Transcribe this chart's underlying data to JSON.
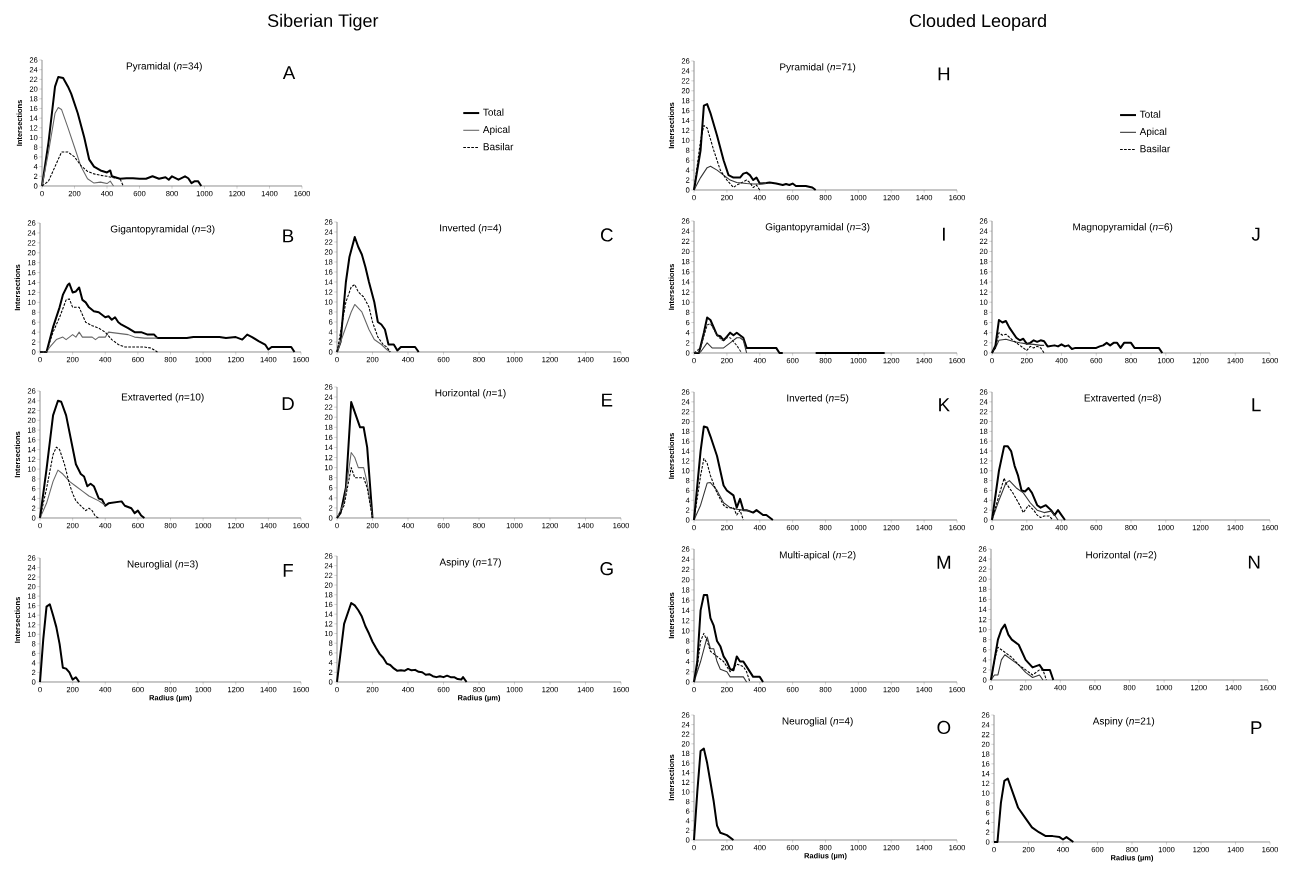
{
  "chart_data": [
    {
      "type": "line",
      "title": "Pyramidal (*n*=34)",
      "ylabel": "Intersections",
      "annotations": [
        "A",
        "Siberian Tiger"
      ],
      "legend": "right",
      "xlim": [
        0,
        1600
      ],
      "ylim": [
        0,
        26
      ],
      "xticks": [
        0,
        200,
        400,
        600,
        800,
        1000,
        1200,
        1400,
        1600
      ],
      "yticks": [
        0,
        2,
        4,
        6,
        8,
        10,
        12,
        14,
        16,
        18,
        20,
        22,
        24,
        26
      ],
      "series": [
        {
          "name": "Total",
          "color": "#000000",
          "x": [
            0,
            40,
            80,
            100,
            130,
            160,
            180,
            220,
            260,
            290,
            320,
            360,
            400,
            420,
            430,
            460,
            480,
            520,
            560,
            600,
            640,
            680,
            720,
            760,
            780,
            800,
            840,
            880,
            900,
            920,
            940,
            960,
            980
          ],
          "values": [
            0,
            9,
            20.5,
            22.5,
            22.3,
            20.5,
            19,
            15,
            10,
            5.5,
            4,
            3.2,
            2.8,
            3.2,
            2,
            1.7,
            1.5,
            1.6,
            1.6,
            1.5,
            1.5,
            2,
            1.5,
            1.8,
            1.3,
            2,
            1.3,
            2,
            1.6,
            0.6,
            1,
            1,
            0
          ]
        },
        {
          "name": "Apical",
          "color": "#666666",
          "x": [
            0,
            40,
            80,
            100,
            120,
            160,
            200,
            240,
            280,
            320,
            360,
            400,
            420,
            440
          ],
          "values": [
            0,
            7,
            15,
            16.2,
            15.8,
            12,
            8,
            4,
            1.5,
            0.6,
            0.8,
            0.5,
            1,
            0
          ]
        },
        {
          "name": "Basilar",
          "color": "#000000",
          "line_style": "dashed",
          "x": [
            0,
            40,
            80,
            120,
            160,
            200,
            240,
            280,
            320,
            360,
            400,
            440,
            480,
            500
          ],
          "values": [
            0,
            1,
            4,
            7,
            7,
            6,
            4.2,
            3,
            2.5,
            2.2,
            2,
            1.7,
            1.5,
            0
          ]
        }
      ]
    },
    {
      "type": "line",
      "title": "Gigantopyramidal (*n*=3)",
      "ylabel": "Intersections",
      "annotations": [
        "B"
      ],
      "xlim": [
        0,
        1600
      ],
      "ylim": [
        0,
        26
      ],
      "xticks": [
        0,
        200,
        400,
        600,
        800,
        1000,
        1200,
        1400,
        1600
      ],
      "yticks": [
        0,
        2,
        4,
        6,
        8,
        10,
        12,
        14,
        16,
        18,
        20,
        22,
        24,
        26
      ],
      "series": [
        {
          "color": "#000000",
          "x": [
            0,
            40,
            60,
            80,
            100,
            120,
            140,
            170,
            180,
            200,
            220,
            240,
            260,
            280,
            300,
            330,
            360,
            380,
            400,
            420,
            440,
            460,
            480,
            500,
            540,
            580,
            620,
            660,
            700,
            720,
            900,
            940,
            1100,
            1140,
            1200,
            1240,
            1270,
            1300,
            1340,
            1380,
            1400,
            1420,
            1540,
            1560
          ],
          "values": [
            0,
            0,
            2.5,
            5,
            7,
            9,
            11.5,
            13.5,
            13.8,
            12,
            12.2,
            13,
            10.5,
            10,
            9,
            8.2,
            8,
            7.5,
            7,
            7.2,
            6.5,
            7,
            6,
            5.5,
            4.8,
            4,
            4,
            3.5,
            3.5,
            2.8,
            2.8,
            3,
            3,
            2.8,
            3,
            2.5,
            3.5,
            3,
            2.2,
            1.5,
            0.5,
            1,
            1,
            0
          ]
        },
        {
          "color": "#666666",
          "x": [
            0,
            40,
            60,
            100,
            140,
            160,
            200,
            220,
            240,
            260,
            320,
            340,
            360,
            400,
            420,
            540,
            580,
            640,
            720
          ],
          "values": [
            0,
            0,
            1,
            2.5,
            3,
            2.5,
            3.5,
            3,
            4,
            3,
            3,
            2.5,
            3,
            3,
            4,
            3.5,
            3,
            2.8,
            2.8
          ]
        },
        {
          "color": "#000000",
          "line_style": "dashed",
          "x": [
            0,
            40,
            80,
            120,
            160,
            180,
            200,
            240,
            260,
            280,
            320,
            360,
            400,
            440,
            480,
            520,
            640,
            680,
            720
          ],
          "values": [
            0,
            0,
            4,
            7,
            10.5,
            10.7,
            9,
            9,
            7.5,
            6,
            5.3,
            4.8,
            4,
            2.5,
            1.5,
            1,
            1,
            0.8,
            0
          ]
        }
      ]
    },
    {
      "type": "line",
      "title": "Inverted (*n*=4)",
      "annotations": [
        "C"
      ],
      "xlim": [
        0,
        1600
      ],
      "ylim": [
        0,
        26
      ],
      "xticks": [
        0,
        200,
        400,
        600,
        800,
        1000,
        1200,
        1400,
        1600
      ],
      "yticks": [
        0,
        2,
        4,
        6,
        8,
        10,
        12,
        14,
        16,
        18,
        20,
        22,
        24,
        26
      ],
      "series": [
        {
          "color": "#000000",
          "x": [
            0,
            20,
            50,
            70,
            100,
            120,
            140,
            160,
            180,
            210,
            230,
            250,
            270,
            290,
            320,
            340,
            360,
            440,
            460
          ],
          "values": [
            0,
            2,
            14,
            19,
            23,
            21,
            19.5,
            17,
            14,
            10,
            6,
            5.5,
            4.5,
            1.5,
            1.5,
            0.3,
            1,
            1,
            0
          ]
        },
        {
          "color": "#666666",
          "x": [
            0,
            40,
            80,
            100,
            140,
            180,
            210,
            250,
            280,
            300
          ],
          "values": [
            0,
            4,
            8,
            9.5,
            8,
            4.5,
            2.5,
            1.5,
            0.5,
            0
          ]
        },
        {
          "color": "#000000",
          "line_style": "dashed",
          "x": [
            0,
            50,
            80,
            100,
            120,
            150,
            180,
            200,
            230,
            260,
            280,
            300
          ],
          "values": [
            0,
            10,
            13,
            13.5,
            12,
            11,
            9,
            6,
            3,
            1.5,
            1,
            0
          ]
        }
      ]
    },
    {
      "type": "line",
      "title": "Extraverted (*n*=10)",
      "ylabel": "Intersections",
      "annotations": [
        "D"
      ],
      "xlim": [
        0,
        1600
      ],
      "ylim": [
        0,
        26
      ],
      "xticks": [
        0,
        200,
        400,
        600,
        800,
        1000,
        1200,
        1400,
        1600
      ],
      "yticks": [
        0,
        2,
        4,
        6,
        8,
        10,
        12,
        14,
        16,
        18,
        20,
        22,
        24,
        26
      ],
      "series": [
        {
          "color": "#000000",
          "x": [
            0,
            40,
            80,
            110,
            130,
            160,
            190,
            220,
            250,
            270,
            290,
            310,
            330,
            360,
            380,
            400,
            420,
            460,
            500,
            520,
            560,
            580,
            600,
            620,
            640
          ],
          "values": [
            0,
            10,
            21,
            24,
            23.8,
            21,
            16,
            11,
            9,
            8.5,
            6.5,
            7,
            6.5,
            4,
            3.8,
            2.5,
            3,
            3.2,
            3.4,
            2.5,
            2,
            1,
            1.5,
            0.5,
            0
          ]
        },
        {
          "color": "#666666",
          "x": [
            0,
            40,
            80,
            110,
            140,
            180,
            220,
            260,
            300,
            360,
            400
          ],
          "values": [
            0,
            3,
            7.5,
            9.8,
            9,
            7.5,
            6.5,
            5.5,
            4.5,
            3.5,
            2.6
          ]
        },
        {
          "color": "#000000",
          "line_style": "dashed",
          "x": [
            0,
            40,
            80,
            100,
            120,
            150,
            180,
            200,
            220,
            250,
            280,
            300,
            320,
            340,
            360
          ],
          "values": [
            0,
            6,
            13,
            14.5,
            14,
            11,
            7,
            5,
            3.5,
            2.5,
            1.5,
            2,
            1.5,
            0.3,
            0
          ]
        }
      ]
    },
    {
      "type": "line",
      "title": "Horizontal (*n*=1)",
      "annotations": [
        "E"
      ],
      "xlim": [
        0,
        1600
      ],
      "ylim": [
        0,
        26
      ],
      "xticks": [
        0,
        200,
        400,
        600,
        800,
        1000,
        1200,
        1400,
        1600
      ],
      "yticks": [
        0,
        2,
        4,
        6,
        8,
        10,
        12,
        14,
        16,
        18,
        20,
        22,
        24,
        26
      ],
      "series": [
        {
          "color": "#000000",
          "x": [
            0,
            20,
            50,
            80,
            100,
            130,
            150,
            170,
            200
          ],
          "values": [
            0,
            1,
            6,
            23,
            21,
            18,
            18,
            14,
            0
          ]
        },
        {
          "color": "#666666",
          "x": [
            0,
            40,
            80,
            100,
            120,
            150,
            170,
            200
          ],
          "values": [
            0,
            3,
            13,
            12,
            10,
            10,
            7,
            0
          ]
        },
        {
          "color": "#000000",
          "line_style": "dashed",
          "x": [
            0,
            40,
            80,
            100,
            150,
            170,
            200
          ],
          "values": [
            0,
            2.5,
            10,
            8,
            8,
            6,
            0
          ]
        }
      ]
    },
    {
      "type": "line",
      "title": "Neuroglial (*n*=3)",
      "xlabel": "Radius (µm)",
      "ylabel": "Intersections",
      "annotations": [
        "F"
      ],
      "xlim": [
        0,
        1600
      ],
      "ylim": [
        0,
        26
      ],
      "xticks": [
        0,
        200,
        400,
        600,
        800,
        1000,
        1200,
        1400,
        1600
      ],
      "yticks": [
        0,
        2,
        4,
        6,
        8,
        10,
        12,
        14,
        16,
        18,
        20,
        22,
        24,
        26
      ],
      "series": [
        {
          "color": "#000000",
          "x": [
            0,
            20,
            40,
            60,
            80,
            100,
            120,
            140,
            160,
            180,
            200,
            220,
            240
          ],
          "values": [
            0,
            9,
            15.8,
            16.3,
            14,
            11.5,
            8,
            3,
            2.8,
            2,
            0.5,
            1,
            0
          ]
        }
      ]
    },
    {
      "type": "line",
      "title": "Aspiny (*n*=17)",
      "xlabel": "Radius (µm)",
      "annotations": [
        "G"
      ],
      "xlim": [
        0,
        1600
      ],
      "ylim": [
        0,
        26
      ],
      "xticks": [
        0,
        200,
        400,
        600,
        800,
        1000,
        1200,
        1400,
        1600
      ],
      "yticks": [
        0,
        2,
        4,
        6,
        8,
        10,
        12,
        14,
        16,
        18,
        20,
        22,
        24,
        26
      ],
      "series": [
        {
          "color": "#000000",
          "x": [
            0,
            40,
            80,
            100,
            120,
            140,
            160,
            180,
            200,
            220,
            240,
            260,
            280,
            300,
            320,
            340,
            360,
            380,
            400,
            420,
            440,
            460,
            480,
            500,
            520,
            540,
            560,
            580,
            600,
            620,
            640,
            660,
            680,
            700,
            710,
            730
          ],
          "values": [
            0,
            12,
            16.3,
            15.8,
            14.8,
            13.5,
            11.5,
            10,
            8.3,
            7,
            5.8,
            5,
            3.8,
            3.5,
            2.8,
            2.3,
            2.4,
            2.3,
            2.7,
            2.4,
            2.5,
            2.1,
            2,
            1.5,
            1.6,
            1.2,
            1,
            1.2,
            1,
            1.3,
            1,
            1,
            0.6,
            0.5,
            1,
            0
          ]
        }
      ]
    },
    {
      "type": "line",
      "title": "Pyramidal (*n*=71)",
      "ylabel": "Intersections",
      "annotations": [
        "H",
        "Clouded Leopard"
      ],
      "legend": "right",
      "xlim": [
        0,
        1600
      ],
      "ylim": [
        0,
        26
      ],
      "xticks": [
        0,
        200,
        400,
        600,
        800,
        1000,
        1200,
        1400,
        1600
      ],
      "yticks": [
        0,
        2,
        4,
        6,
        8,
        10,
        12,
        14,
        16,
        18,
        20,
        22,
        24,
        26
      ],
      "series": [
        {
          "name": "Total",
          "color": "#000000",
          "x": [
            0,
            40,
            60,
            80,
            100,
            140,
            180,
            210,
            240,
            280,
            300,
            320,
            340,
            360,
            380,
            400,
            440,
            460,
            500,
            540,
            560,
            580,
            600,
            620,
            680,
            720,
            740
          ],
          "values": [
            0,
            8,
            17,
            17.3,
            15.5,
            11,
            6,
            3,
            2.5,
            2.5,
            3.3,
            3.5,
            3,
            2,
            2.5,
            1.3,
            1.4,
            1.5,
            1.3,
            1,
            1.2,
            1,
            1.3,
            0.8,
            0.8,
            0.5,
            0
          ]
        },
        {
          "name": "Apical",
          "color": "#333333",
          "x": [
            0,
            40,
            80,
            100,
            140,
            180,
            220,
            260,
            320,
            360,
            400,
            440
          ],
          "values": [
            0,
            2.5,
            4.5,
            4.8,
            4,
            3,
            2,
            1.5,
            1.3,
            1.2,
            1.2,
            1.3
          ]
        },
        {
          "name": "Basilar",
          "color": "#000000",
          "line_style": "dashed",
          "x": [
            0,
            40,
            60,
            80,
            120,
            160,
            200,
            240,
            260,
            280,
            320,
            340,
            360,
            380,
            400
          ],
          "values": [
            0,
            10,
            13,
            12.5,
            8,
            4,
            2,
            0.5,
            1,
            1.3,
            2,
            1.5,
            0.5,
            1,
            0
          ]
        }
      ]
    },
    {
      "type": "line",
      "title": "Gigantopyramidal (*n*=3)",
      "ylabel": "Intersections",
      "annotations": [
        "I"
      ],
      "xlim": [
        0,
        1600
      ],
      "ylim": [
        0,
        26
      ],
      "xticks": [
        0,
        200,
        400,
        600,
        800,
        1000,
        1200,
        1400,
        1600
      ],
      "yticks": [
        0,
        2,
        4,
        6,
        8,
        10,
        12,
        14,
        16,
        18,
        20,
        22,
        24,
        26
      ],
      "series": [
        {
          "color": "#000000",
          "x": [
            0,
            30,
            60,
            80,
            100,
            120,
            140,
            160,
            180,
            200,
            220,
            240,
            260,
            280,
            300,
            320,
            500,
            520,
            540,
            560,
            740,
            1160
          ],
          "values": [
            0,
            0,
            4,
            7,
            6.5,
            5,
            3.5,
            3.3,
            2.5,
            3.2,
            4,
            3.5,
            4,
            3.5,
            3,
            1,
            1,
            0,
            0,
            null,
            0,
            0
          ]
        },
        {
          "color": "#333333",
          "x": [
            0,
            40,
            80,
            110,
            180,
            220,
            260,
            280,
            300,
            320
          ],
          "values": [
            0,
            0.2,
            2,
            1,
            1,
            2,
            3,
            3,
            2.5,
            0
          ]
        },
        {
          "color": "#222222",
          "line_style": "dashed",
          "x": [
            0,
            40,
            80,
            100,
            140,
            170,
            200,
            220,
            260,
            290
          ],
          "values": [
            0,
            1,
            5.5,
            5.8,
            3.5,
            2.5,
            3,
            3,
            1.5,
            0
          ]
        }
      ]
    },
    {
      "type": "line",
      "title": "Magnopyramidal (*n*=6)",
      "annotations": [
        "J"
      ],
      "xlim": [
        0,
        1600
      ],
      "ylim": [
        0,
        26
      ],
      "xticks": [
        0,
        200,
        400,
        600,
        800,
        1000,
        1200,
        1400,
        1600
      ],
      "yticks": [
        0,
        2,
        4,
        6,
        8,
        10,
        12,
        14,
        16,
        18,
        20,
        22,
        24,
        26
      ],
      "series": [
        {
          "color": "#000000",
          "x": [
            0,
            20,
            40,
            60,
            80,
            100,
            120,
            140,
            160,
            180,
            200,
            220,
            240,
            260,
            280,
            300,
            320,
            360,
            380,
            400,
            420,
            440,
            460,
            480,
            600,
            620,
            640,
            660,
            680,
            700,
            720,
            740,
            760,
            800,
            820,
            960,
            980
          ],
          "values": [
            0,
            1.5,
            6.5,
            6,
            6.3,
            5,
            4,
            3,
            2.5,
            2.8,
            1.8,
            2,
            2.5,
            2.2,
            2.5,
            2.3,
            1.3,
            1.5,
            1.3,
            1.7,
            1.3,
            1.5,
            0.8,
            1,
            1,
            1.3,
            1.5,
            2,
            1.5,
            2,
            2,
            1,
            2,
            2,
            1,
            1,
            0
          ]
        },
        {
          "color": "#333333",
          "x": [
            0,
            20,
            40,
            80,
            120,
            160,
            200,
            240,
            280,
            300
          ],
          "values": [
            0,
            1,
            2.5,
            2.7,
            2.3,
            2,
            1.8,
            1.7,
            1.5,
            1.5
          ]
        },
        {
          "color": "#000000",
          "line_style": "dashed",
          "x": [
            0,
            20,
            40,
            60,
            80,
            120,
            160,
            180,
            200,
            220,
            240,
            260,
            280,
            300
          ],
          "values": [
            0,
            1,
            4,
            3.5,
            3.7,
            2.5,
            1.5,
            1,
            0.5,
            1.3,
            1,
            1.3,
            1,
            0
          ]
        }
      ]
    },
    {
      "type": "line",
      "title": "Inverted (*n*=5)",
      "ylabel": "Intersections",
      "annotations": [
        "K"
      ],
      "xlim": [
        0,
        1600
      ],
      "ylim": [
        0,
        26
      ],
      "xticks": [
        0,
        200,
        400,
        600,
        800,
        1000,
        1200,
        1400,
        1600
      ],
      "yticks": [
        0,
        2,
        4,
        6,
        8,
        10,
        12,
        14,
        16,
        18,
        20,
        22,
        24,
        26
      ],
      "series": [
        {
          "color": "#000000",
          "x": [
            0,
            40,
            60,
            80,
            100,
            140,
            180,
            200,
            220,
            240,
            260,
            280,
            300,
            320,
            360,
            380,
            400,
            420,
            440,
            460,
            480
          ],
          "values": [
            0,
            14,
            19,
            18.8,
            17,
            13,
            7,
            6,
            5.5,
            5,
            2.5,
            4.3,
            2,
            2,
            1.5,
            2,
            1.5,
            1,
            1,
            0.5,
            0
          ]
        },
        {
          "color": "#333333",
          "x": [
            0,
            40,
            80,
            100,
            140,
            180,
            220,
            260,
            300,
            340
          ],
          "values": [
            0,
            3,
            7.5,
            7.6,
            6,
            3.5,
            2.5,
            2.2,
            2,
            1.8
          ]
        },
        {
          "color": "#000000",
          "line_style": "dashed",
          "x": [
            0,
            40,
            60,
            80,
            100,
            140,
            180,
            200,
            240,
            260,
            280,
            300
          ],
          "values": [
            0,
            9,
            12.5,
            11.5,
            9,
            5.5,
            3,
            2.5,
            2.5,
            1,
            2,
            0
          ]
        }
      ]
    },
    {
      "type": "line",
      "title": "Extraverted (*n*=8)",
      "annotations": [
        "L"
      ],
      "xlim": [
        0,
        1600
      ],
      "ylim": [
        0,
        26
      ],
      "xticks": [
        0,
        200,
        400,
        600,
        800,
        1000,
        1200,
        1400,
        1600
      ],
      "yticks": [
        0,
        2,
        4,
        6,
        8,
        10,
        12,
        14,
        16,
        18,
        20,
        22,
        24,
        26
      ],
      "series": [
        {
          "color": "#000000",
          "x": [
            0,
            40,
            70,
            90,
            110,
            130,
            150,
            170,
            190,
            210,
            230,
            260,
            280,
            310,
            340,
            360,
            380,
            400,
            420
          ],
          "values": [
            0,
            10,
            15,
            15,
            14,
            11,
            9,
            6,
            5.8,
            6.5,
            5.5,
            3,
            2.5,
            3,
            2,
            1,
            2,
            1,
            0
          ]
        },
        {
          "color": "#333333",
          "x": [
            0,
            40,
            80,
            100,
            140,
            180,
            220,
            260,
            300,
            340,
            360,
            380
          ],
          "values": [
            0,
            4,
            7.5,
            8,
            6.5,
            5.5,
            3.5,
            2,
            1.5,
            1.8,
            1,
            0
          ]
        },
        {
          "color": "#000000",
          "line_style": "dashed",
          "x": [
            0,
            40,
            70,
            80,
            120,
            160,
            180,
            210,
            240,
            260,
            280,
            300,
            330,
            350
          ],
          "values": [
            0,
            5,
            8.5,
            7.5,
            5.5,
            3,
            1.5,
            3,
            2,
            1,
            0.5,
            0.8,
            0.8,
            0
          ]
        }
      ]
    },
    {
      "type": "line",
      "title": "Multi-apical (*n*=2)",
      "ylabel": "Intersections",
      "annotations": [
        "M"
      ],
      "xlim": [
        0,
        1600
      ],
      "ylim": [
        0,
        26
      ],
      "xticks": [
        0,
        200,
        400,
        600,
        800,
        1000,
        1200,
        1400,
        1600
      ],
      "yticks": [
        0,
        2,
        4,
        6,
        8,
        10,
        12,
        14,
        16,
        18,
        20,
        22,
        24,
        26
      ],
      "series": [
        {
          "color": "#000000",
          "x": [
            0,
            20,
            40,
            60,
            80,
            100,
            120,
            140,
            160,
            180,
            200,
            220,
            240,
            260,
            280,
            300,
            320,
            360,
            400,
            420
          ],
          "values": [
            0,
            4,
            14,
            17,
            17,
            12.5,
            11,
            8,
            7,
            5,
            4,
            2.5,
            2.3,
            5,
            4,
            4,
            3,
            1,
            1,
            0
          ]
        },
        {
          "color": "#333333",
          "x": [
            0,
            40,
            80,
            100,
            120,
            140,
            160,
            200,
            220,
            240,
            280,
            300,
            320
          ],
          "values": [
            0,
            4,
            8.8,
            6.5,
            6.5,
            4,
            2.5,
            2,
            1,
            1,
            1,
            1,
            0
          ]
        },
        {
          "color": "#000000",
          "line_style": "dashed",
          "x": [
            0,
            20,
            40,
            60,
            80,
            100,
            140,
            180,
            220,
            260,
            300,
            320,
            340
          ],
          "values": [
            0,
            3,
            8,
            9.5,
            8,
            6,
            5,
            4,
            2,
            3.5,
            3,
            2,
            0
          ]
        }
      ]
    },
    {
      "type": "line",
      "title": "Horizontal (*n*=2)",
      "annotations": [
        "N"
      ],
      "xlim": [
        0,
        1600
      ],
      "ylim": [
        0,
        26
      ],
      "xticks": [
        0,
        200,
        400,
        600,
        800,
        1000,
        1200,
        1400,
        1600
      ],
      "yticks": [
        0,
        2,
        4,
        6,
        8,
        10,
        12,
        14,
        16,
        18,
        20,
        22,
        24,
        26
      ],
      "series": [
        {
          "color": "#000000",
          "x": [
            0,
            40,
            60,
            80,
            100,
            120,
            160,
            200,
            240,
            280,
            300,
            340,
            360
          ],
          "values": [
            0,
            8,
            10,
            11,
            9,
            8,
            7,
            4,
            2.5,
            3,
            2,
            2,
            0
          ]
        },
        {
          "color": "#333333",
          "x": [
            0,
            20,
            40,
            60,
            80,
            120,
            160,
            200,
            240,
            280,
            300
          ],
          "values": [
            0,
            1,
            1,
            4,
            5,
            4,
            3,
            1.5,
            0.5,
            1,
            0
          ]
        },
        {
          "color": "#000000",
          "line_style": "dashed",
          "x": [
            0,
            20,
            40,
            60,
            80,
            120,
            160,
            200,
            240,
            280,
            300,
            320
          ],
          "values": [
            0,
            4,
            6.5,
            6,
            5.5,
            4.5,
            3,
            2,
            1,
            2,
            2,
            0
          ]
        }
      ]
    },
    {
      "type": "line",
      "title": "Neuroglial (*n*=4)",
      "xlabel": "Radius (µm)",
      "ylabel": "Intersections",
      "annotations": [
        "O"
      ],
      "xlim": [
        0,
        1600
      ],
      "ylim": [
        0,
        26
      ],
      "xticks": [
        0,
        200,
        400,
        600,
        800,
        1000,
        1200,
        1400,
        1600
      ],
      "yticks": [
        0,
        2,
        4,
        6,
        8,
        10,
        12,
        14,
        16,
        18,
        20,
        22,
        24,
        26
      ],
      "series": [
        {
          "color": "#000000",
          "x": [
            0,
            20,
            40,
            60,
            80,
            100,
            120,
            140,
            160,
            200,
            240
          ],
          "values": [
            0,
            10,
            18.5,
            19,
            16,
            12,
            8,
            3,
            1.5,
            1,
            0
          ]
        }
      ]
    },
    {
      "type": "line",
      "title": "Aspiny (*n*=21)",
      "xlabel": "Radius (µm)",
      "annotations": [
        "P"
      ],
      "xlim": [
        0,
        1600
      ],
      "ylim": [
        0,
        26
      ],
      "xticks": [
        0,
        200,
        400,
        600,
        800,
        1000,
        1200,
        1400,
        1600
      ],
      "yticks": [
        0,
        2,
        4,
        6,
        8,
        10,
        12,
        14,
        16,
        18,
        20,
        22,
        24,
        26
      ],
      "series": [
        {
          "color": "#000000",
          "x": [
            0,
            20,
            40,
            60,
            80,
            100,
            120,
            140,
            180,
            220,
            260,
            300,
            340,
            380,
            400,
            420,
            440,
            460
          ],
          "values": [
            0,
            0,
            8,
            12.5,
            13,
            11,
            9,
            7,
            5,
            3,
            2,
            1.2,
            1.2,
            1,
            0.5,
            1,
            0.5,
            0
          ]
        }
      ]
    }
  ]
}
